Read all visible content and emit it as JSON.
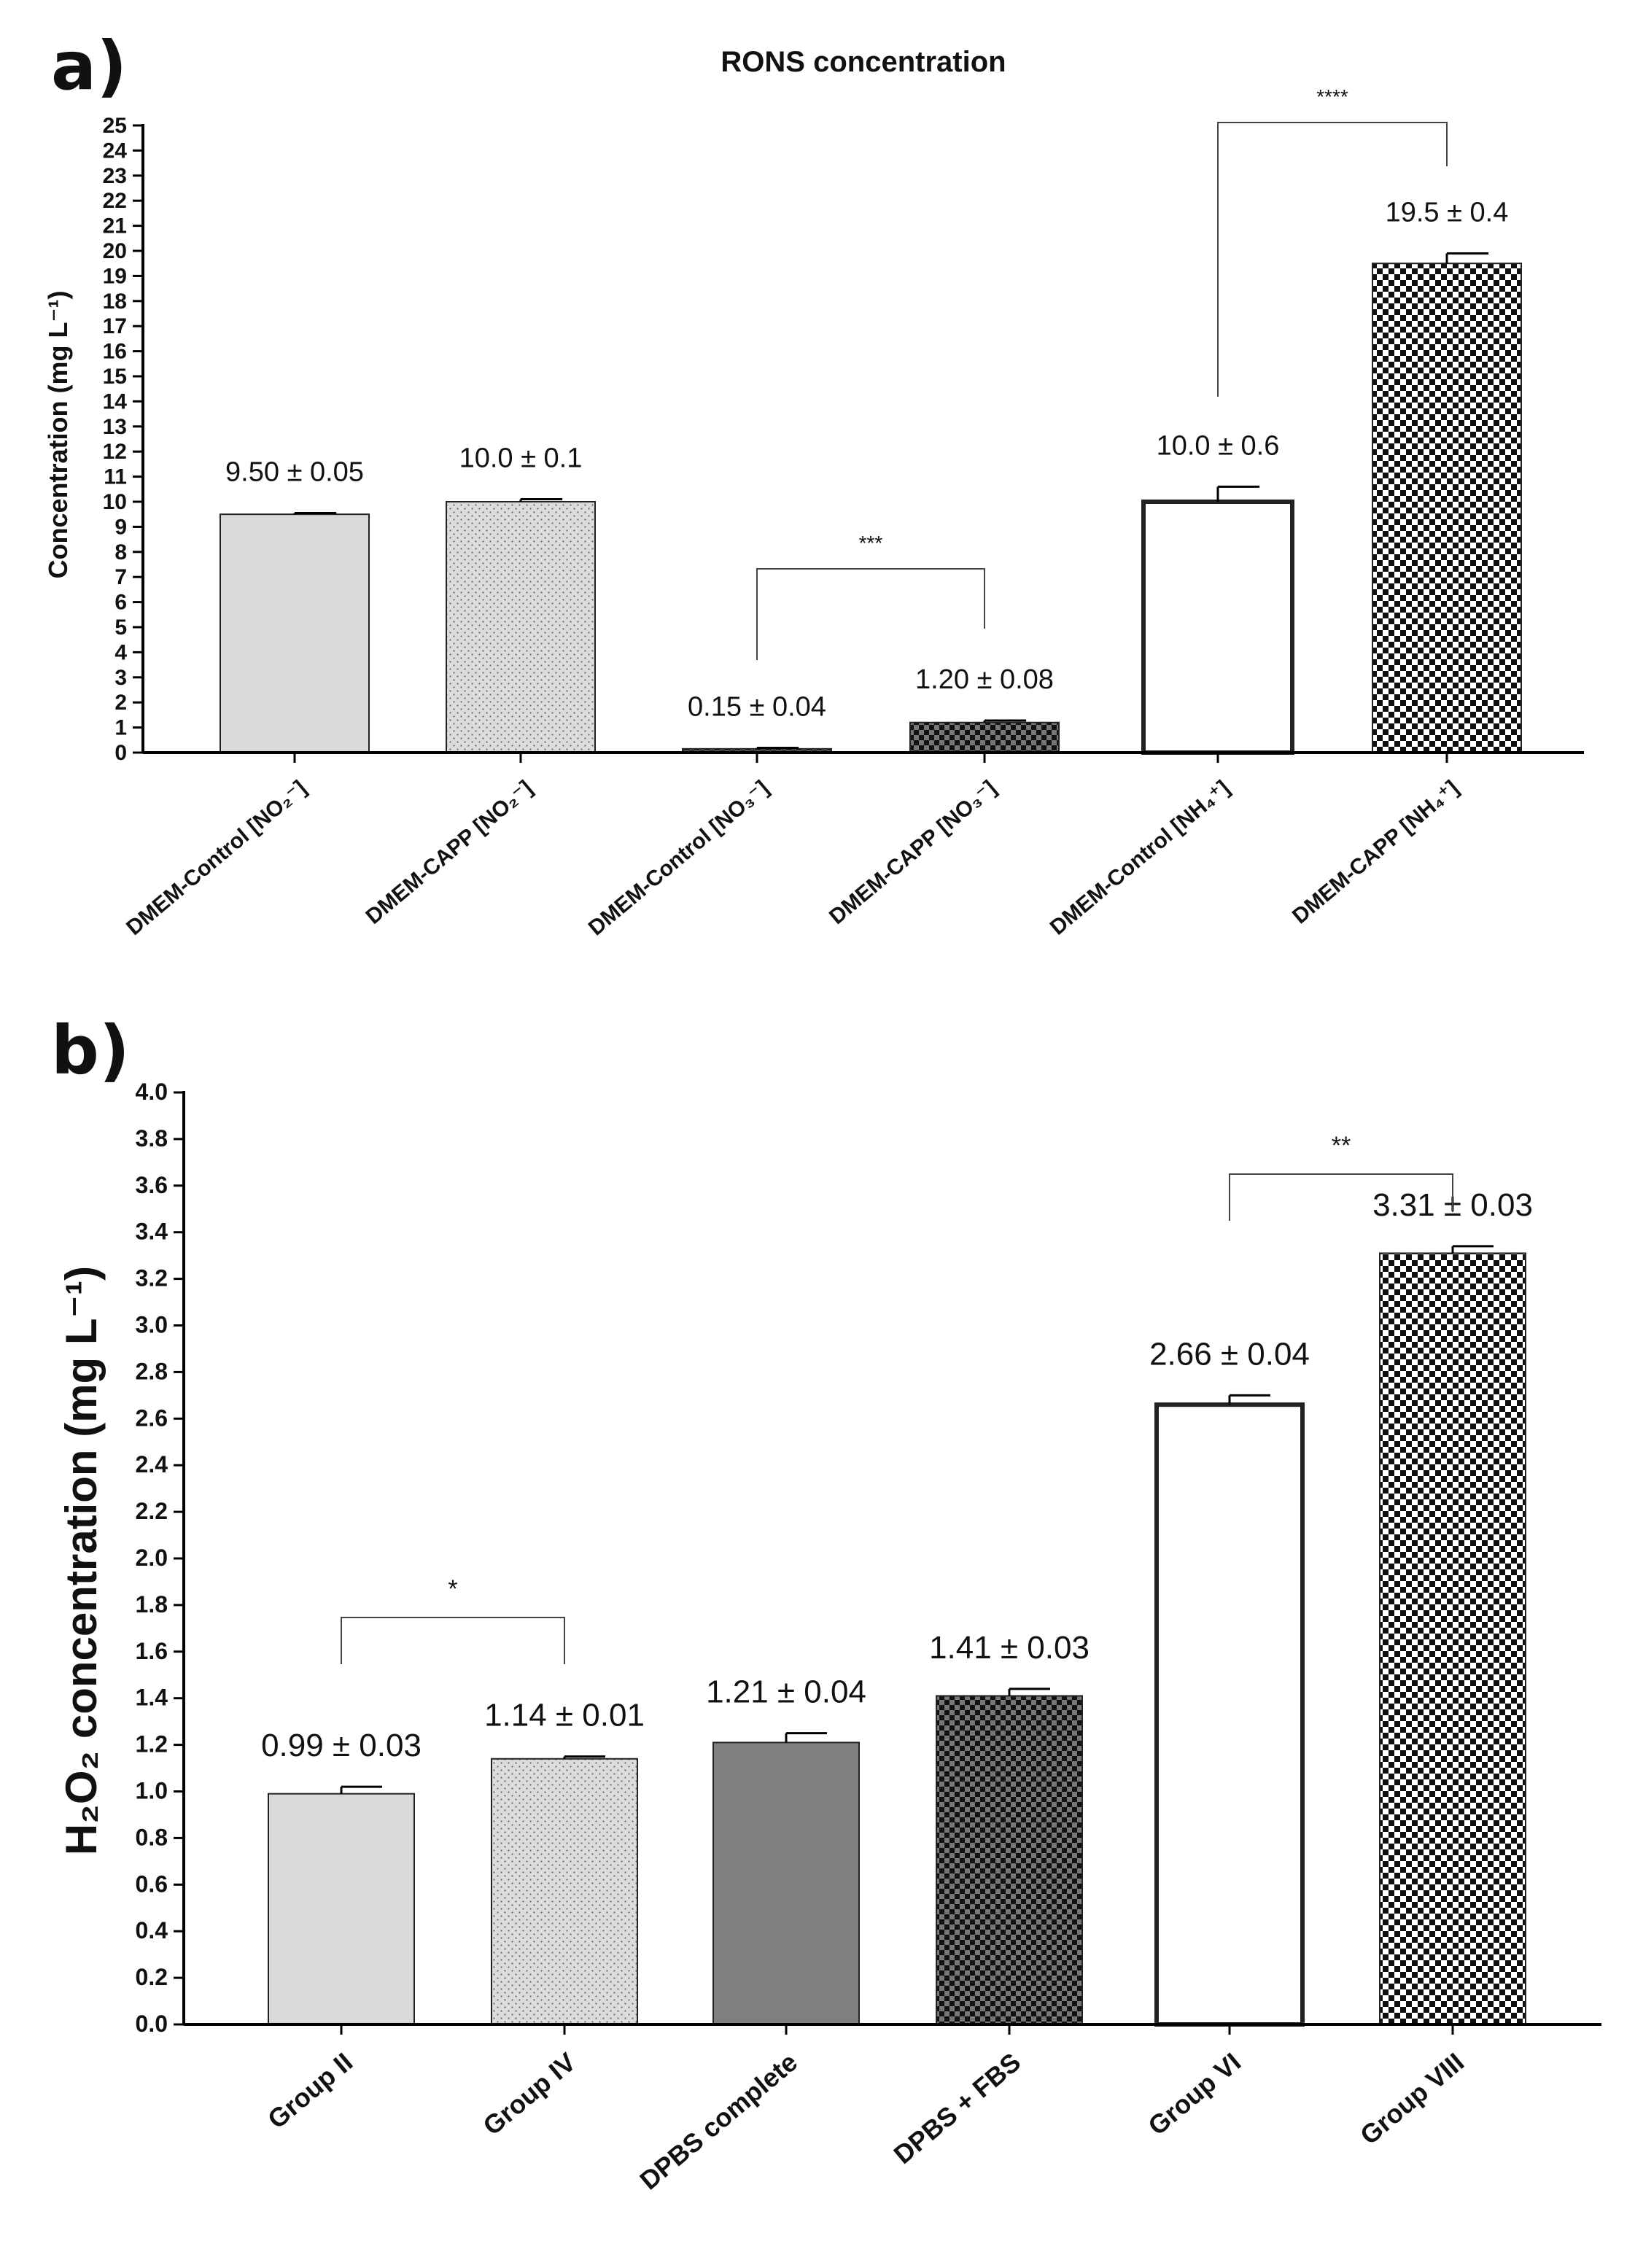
{
  "chart_data": [
    {
      "panel": "a)",
      "type": "bar",
      "title": "RONS concentration",
      "ylabel": "Concentration (mg L⁻¹)",
      "xlabel": "",
      "ylim": [
        0,
        25
      ],
      "yticks": [
        0,
        1,
        2,
        3,
        4,
        5,
        6,
        7,
        8,
        9,
        10,
        11,
        12,
        13,
        14,
        15,
        16,
        17,
        18,
        19,
        20,
        21,
        22,
        23,
        24,
        25
      ],
      "categories": [
        "DMEM-Control [NO₂⁻]",
        "DMEM-CAPP [NO₂⁻]",
        "DMEM-Control [NO₃⁻]",
        "DMEM-CAPP [NO₃⁻]",
        "DMEM-Control [NH₄⁺]",
        "DMEM-CAPP [NH₄⁺]"
      ],
      "values": [
        9.5,
        10.0,
        0.15,
        1.2,
        10.0,
        19.5
      ],
      "errors": [
        0.05,
        0.1,
        0.04,
        0.08,
        0.6,
        0.4
      ],
      "value_labels": [
        "9.50 ± 0.05",
        "10.0 ± 0.1",
        "0.15 ± 0.04",
        "1.20 ± 0.08",
        "10.0 ± 0.6",
        "19.5 ± 0.4"
      ],
      "fills": [
        "solid-light",
        "dots",
        "checker-dark",
        "checker-dark",
        "white",
        "checker"
      ],
      "significance": [
        {
          "from": 2,
          "to": 3,
          "label": "***"
        },
        {
          "from": 4,
          "to": 5,
          "label": "****"
        }
      ],
      "grid": false,
      "legend": "none"
    },
    {
      "panel": "b)",
      "type": "bar",
      "title": "",
      "ylabel": "H₂O₂ concentration (mg L⁻¹)",
      "xlabel": "",
      "ylim": [
        0,
        4.0
      ],
      "yticks": [
        "0.0",
        "0.2",
        "0.4",
        "0.6",
        "0.8",
        "1.0",
        "1.2",
        "1.4",
        "1.6",
        "1.8",
        "2.0",
        "2.2",
        "2.4",
        "2.6",
        "2.8",
        "3.0",
        "3.2",
        "3.4",
        "3.6",
        "3.8",
        "4.0"
      ],
      "categories": [
        "Group II",
        "Group IV",
        "DPBS complete",
        "DPBS + FBS",
        "Group VI",
        "Group VIII"
      ],
      "values": [
        0.99,
        1.14,
        1.21,
        1.41,
        2.66,
        3.31
      ],
      "errors": [
        0.03,
        0.01,
        0.04,
        0.03,
        0.04,
        0.03
      ],
      "value_labels": [
        "0.99 ± 0.03",
        "1.14 ± 0.01",
        "1.21 ± 0.04",
        "1.41 ± 0.03",
        "2.66 ± 0.04",
        "3.31 ± 0.03"
      ],
      "fills": [
        "solid-light",
        "dots",
        "solid-mid",
        "checker-dark",
        "white",
        "checker"
      ],
      "significance": [
        {
          "from": 0,
          "to": 1,
          "label": "*"
        },
        {
          "from": 4,
          "to": 5,
          "label": "**"
        }
      ],
      "grid": false,
      "legend": "none"
    }
  ],
  "colors": {
    "light_gray": "#d9d9d9",
    "mid_gray": "#808080",
    "dark": "#222222",
    "axis": "#000000"
  }
}
